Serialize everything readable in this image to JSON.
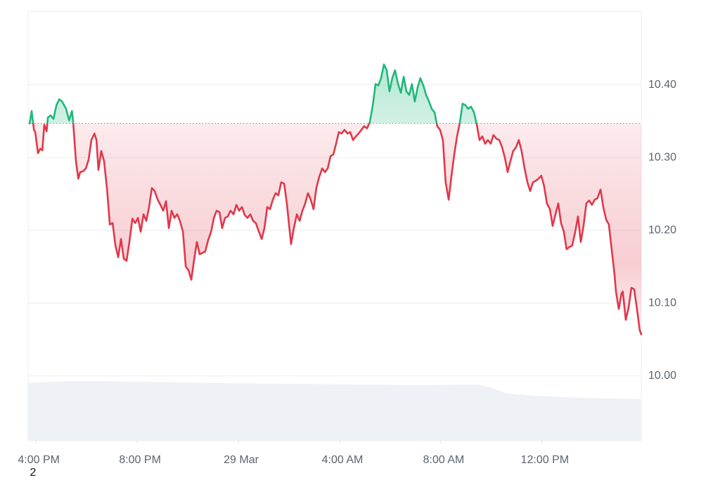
{
  "chart_data": {
    "type": "line",
    "annotation": "2",
    "baseline": 10.347,
    "up_color": "#1fb87a",
    "down_color": "#e0384a",
    "xlim": [
      -0.31,
      23.92
    ],
    "ylim": [
      9.911,
      10.501
    ],
    "xticks": [
      {
        "value": 0,
        "label": "4:00 PM"
      },
      {
        "value": 4,
        "label": "8:00 PM"
      },
      {
        "value": 8,
        "label": "29 Mar"
      },
      {
        "value": 12,
        "label": "4:00 AM"
      },
      {
        "value": 16,
        "label": "8:00 AM"
      },
      {
        "value": 20,
        "label": "12:00 PM"
      }
    ],
    "yticks": [
      {
        "value": 10.4,
        "label": "10.40"
      },
      {
        "value": 10.3,
        "label": "10.30"
      },
      {
        "value": 10.2,
        "label": "10.20"
      },
      {
        "value": 10.1,
        "label": "10.10"
      },
      {
        "value": 10.0,
        "label": "10.00"
      }
    ],
    "grid": true,
    "x": [
      -0.25,
      -0.17,
      -0.08,
      -0.03,
      0.08,
      0.17,
      0.25,
      0.33,
      0.42,
      0.47,
      0.58,
      0.69,
      0.81,
      0.92,
      1.03,
      1.19,
      1.31,
      1.42,
      1.47,
      1.58,
      1.67,
      1.75,
      1.86,
      1.97,
      2.08,
      2.19,
      2.31,
      2.39,
      2.47,
      2.58,
      2.69,
      2.81,
      2.92,
      3.03,
      3.14,
      3.25,
      3.36,
      3.47,
      3.58,
      3.69,
      3.81,
      3.92,
      4.03,
      4.14,
      4.25,
      4.36,
      4.47,
      4.58,
      4.69,
      4.81,
      4.92,
      5.03,
      5.14,
      5.25,
      5.36,
      5.47,
      5.58,
      5.69,
      5.81,
      5.92,
      6.03,
      6.14,
      6.25,
      6.36,
      6.47,
      6.58,
      6.69,
      6.81,
      6.92,
      7.03,
      7.14,
      7.25,
      7.36,
      7.47,
      7.58,
      7.69,
      7.81,
      7.92,
      8.03,
      8.14,
      8.25,
      8.36,
      8.47,
      8.58,
      8.69,
      8.81,
      8.92,
      9.03,
      9.14,
      9.25,
      9.36,
      9.47,
      9.58,
      9.69,
      9.81,
      9.92,
      10.03,
      10.08,
      10.19,
      10.31,
      10.42,
      10.53,
      10.64,
      10.75,
      10.86,
      10.97,
      11.08,
      11.19,
      11.31,
      11.42,
      11.53,
      11.64,
      11.75,
      11.86,
      11.97,
      12.08,
      12.19,
      12.31,
      12.42,
      12.53,
      12.64,
      12.75,
      12.86,
      12.97,
      13.08,
      13.19,
      13.31,
      13.42,
      13.53,
      13.64,
      13.75,
      13.86,
      13.97,
      14.08,
      14.19,
      14.31,
      14.42,
      14.53,
      14.64,
      14.75,
      14.86,
      14.97,
      15.08,
      15.19,
      15.31,
      15.42,
      15.53,
      15.64,
      15.75,
      15.86,
      15.97,
      16.08,
      16.19,
      16.31,
      16.42,
      16.53,
      16.64,
      16.75,
      16.86,
      16.97,
      17.08,
      17.19,
      17.31,
      17.42,
      17.53,
      17.64,
      17.75,
      17.86,
      17.97,
      18.08,
      18.19,
      18.31,
      18.42,
      18.53,
      18.64,
      18.75,
      18.86,
      18.97,
      19.08,
      19.19,
      19.31,
      19.42,
      19.53,
      19.64,
      19.75,
      19.86,
      19.97,
      20.08,
      20.19,
      20.31,
      20.42,
      20.53,
      20.64,
      20.75,
      20.86,
      20.97,
      21.08,
      21.19,
      21.31,
      21.42,
      21.53,
      21.64,
      21.75,
      21.86,
      21.97,
      22.08,
      22.19,
      22.31,
      22.42,
      22.53,
      22.64,
      22.75,
      22.86,
      22.92,
      23.03,
      23.14,
      23.19,
      23.31,
      23.42,
      23.53,
      23.64,
      23.75,
      23.86,
      23.92
    ],
    "values": [
      10.347,
      10.364,
      10.338,
      10.335,
      10.306,
      10.312,
      10.31,
      10.345,
      10.336,
      10.355,
      10.358,
      10.353,
      10.372,
      10.38,
      10.377,
      10.367,
      10.351,
      10.364,
      10.348,
      10.295,
      10.271,
      10.28,
      10.281,
      10.285,
      10.297,
      10.324,
      10.333,
      10.324,
      10.283,
      10.309,
      10.295,
      10.256,
      10.208,
      10.21,
      10.179,
      10.163,
      10.188,
      10.161,
      10.158,
      10.184,
      10.216,
      10.21,
      10.217,
      10.198,
      10.222,
      10.213,
      10.232,
      10.258,
      10.254,
      10.242,
      10.235,
      10.227,
      10.24,
      10.203,
      10.227,
      10.217,
      10.222,
      10.213,
      10.198,
      10.15,
      10.145,
      10.132,
      10.16,
      10.184,
      10.167,
      10.169,
      10.171,
      10.187,
      10.198,
      10.217,
      10.227,
      10.225,
      10.203,
      10.217,
      10.219,
      10.227,
      10.222,
      10.235,
      10.227,
      10.232,
      10.221,
      10.217,
      10.222,
      10.213,
      10.21,
      10.198,
      10.188,
      10.203,
      10.232,
      10.229,
      10.242,
      10.251,
      10.248,
      10.266,
      10.264,
      10.235,
      10.198,
      10.181,
      10.203,
      10.222,
      10.213,
      10.227,
      10.237,
      10.251,
      10.242,
      10.229,
      10.258,
      10.273,
      10.285,
      10.28,
      10.285,
      10.302,
      10.304,
      10.319,
      10.335,
      10.333,
      10.338,
      10.333,
      10.335,
      10.324,
      10.329,
      10.333,
      10.338,
      10.343,
      10.34,
      10.348,
      10.372,
      10.401,
      10.399,
      10.409,
      10.428,
      10.42,
      10.391,
      10.409,
      10.42,
      10.401,
      10.389,
      10.411,
      10.391,
      10.386,
      10.401,
      10.377,
      10.396,
      10.409,
      10.399,
      10.386,
      10.377,
      10.367,
      10.362,
      10.343,
      10.338,
      10.324,
      10.266,
      10.242,
      10.275,
      10.304,
      10.329,
      10.348,
      10.374,
      10.372,
      10.367,
      10.37,
      10.362,
      10.345,
      10.324,
      10.329,
      10.319,
      10.324,
      10.319,
      10.331,
      10.326,
      10.324,
      10.314,
      10.3,
      10.28,
      10.295,
      10.309,
      10.314,
      10.324,
      10.309,
      10.285,
      10.266,
      10.254,
      10.266,
      10.268,
      10.271,
      10.275,
      10.261,
      10.237,
      10.229,
      10.206,
      10.222,
      10.237,
      10.21,
      10.198,
      10.174,
      10.177,
      10.179,
      10.198,
      10.219,
      10.184,
      10.206,
      10.237,
      10.241,
      10.235,
      10.242,
      10.244,
      10.256,
      10.232,
      10.215,
      10.208,
      10.174,
      10.14,
      10.116,
      10.092,
      10.113,
      10.116,
      10.077,
      10.094,
      10.121,
      10.119,
      10.092,
      10.063,
      10.057
    ]
  }
}
